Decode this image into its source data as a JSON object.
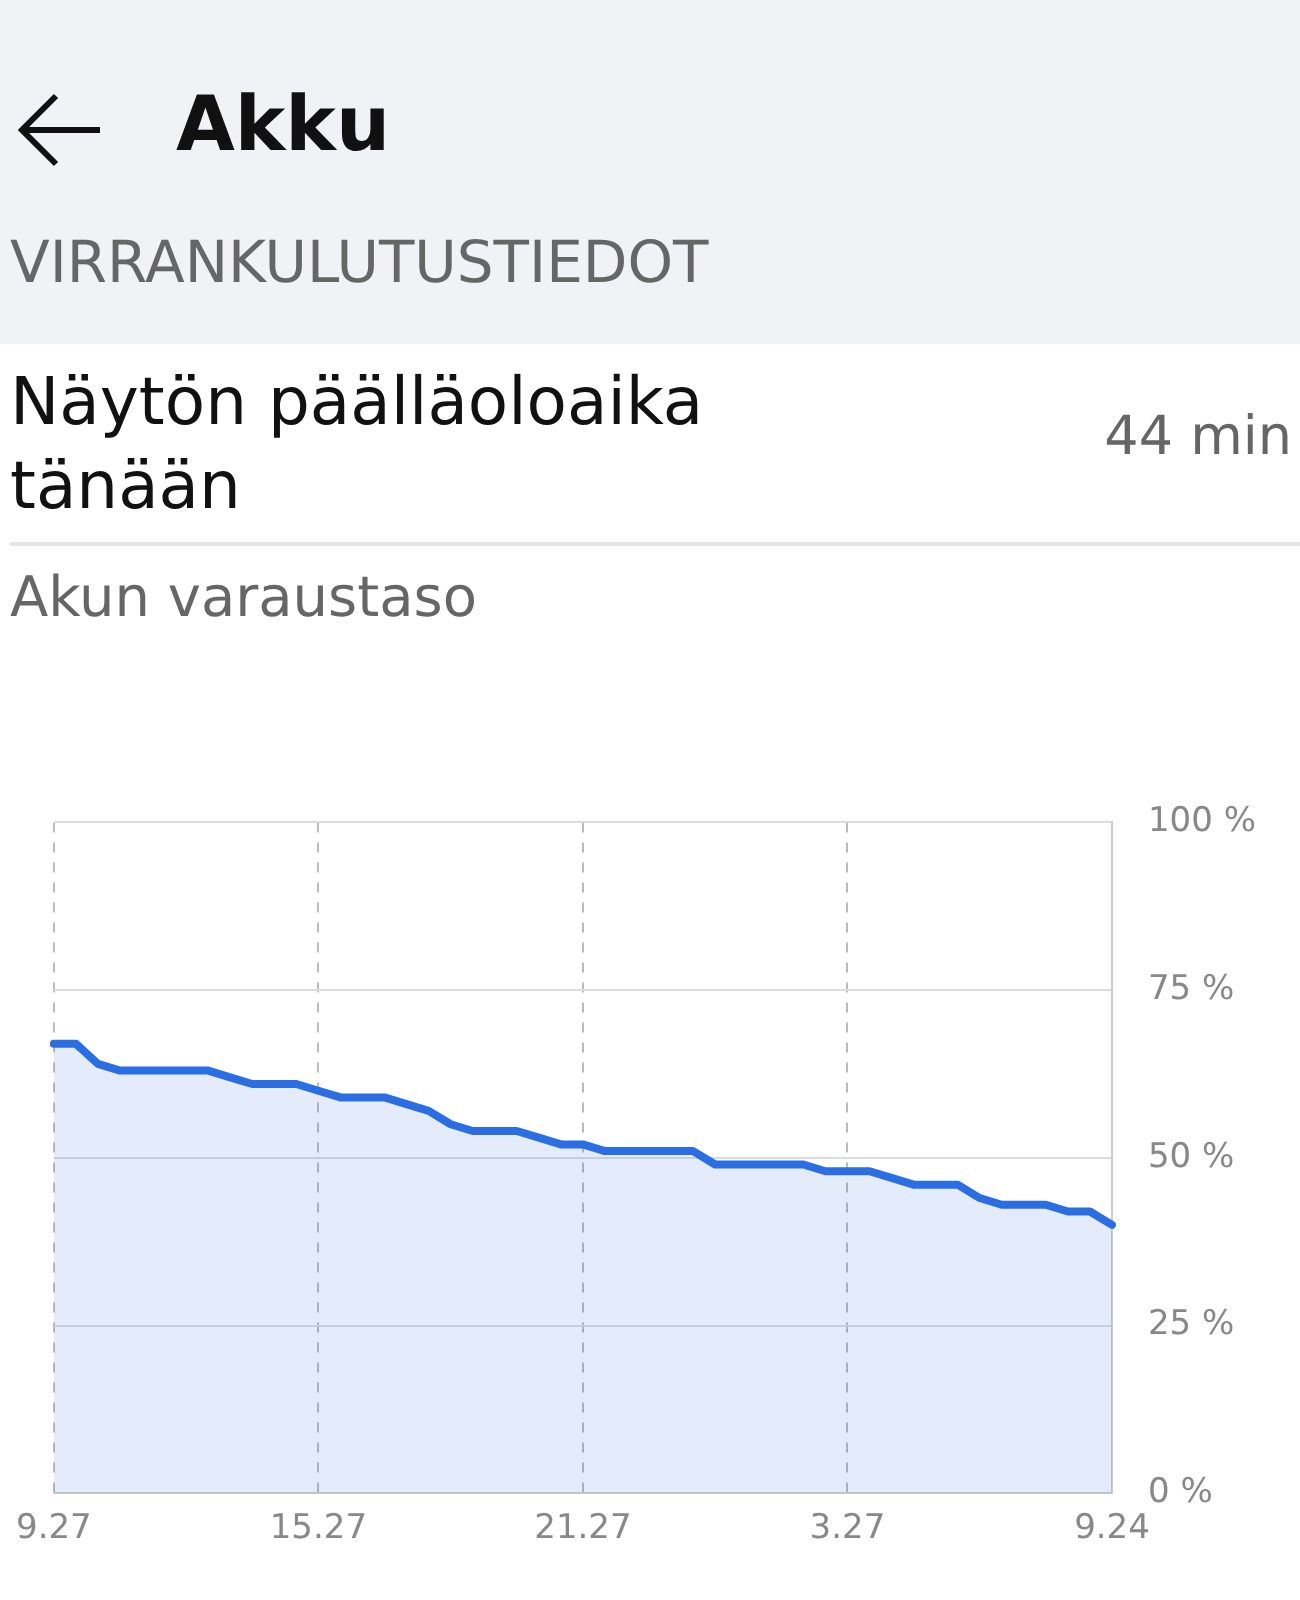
{
  "chart_data": {
    "type": "area",
    "title": "Akku",
    "subtitle": "VIRRANKULUTUSTIEDOT",
    "annotations": [
      "Näytön päälläoloaika tänään",
      "44 min",
      "Akun varaustaso"
    ],
    "categories": [
      "9.27",
      null,
      null,
      null,
      null,
      null,
      null,
      null,
      null,
      null,
      null,
      null,
      "15.27",
      null,
      null,
      null,
      null,
      null,
      null,
      null,
      null,
      null,
      null,
      null,
      "21.27",
      null,
      null,
      null,
      null,
      null,
      null,
      null,
      null,
      null,
      null,
      null,
      "3.27",
      null,
      null,
      null,
      null,
      null,
      null,
      null,
      null,
      null,
      null,
      null,
      "9.24"
    ],
    "series": [
      {
        "color": "#2b6de3",
        "values": [
          67,
          67,
          64,
          63,
          63,
          63,
          63,
          63,
          62,
          61,
          61,
          61,
          60,
          59,
          59,
          59,
          58,
          57,
          55,
          54,
          54,
          54,
          53,
          52,
          52,
          51,
          51,
          51,
          51,
          51,
          49,
          49,
          49,
          49,
          49,
          48,
          48,
          48,
          47,
          46,
          46,
          46,
          44,
          43,
          43,
          43,
          42,
          42,
          40
        ]
      }
    ],
    "ylim": [
      0,
      100
    ],
    "yticks": [
      {
        "value": 0,
        "label": "0 %"
      },
      {
        "value": 25,
        "label": "25 %"
      },
      {
        "value": 50,
        "label": "50 %"
      },
      {
        "value": 75,
        "label": "75 %"
      },
      {
        "value": 100,
        "label": "100 %"
      }
    ],
    "grid": true,
    "marker": "none",
    "line_style": "solid"
  }
}
